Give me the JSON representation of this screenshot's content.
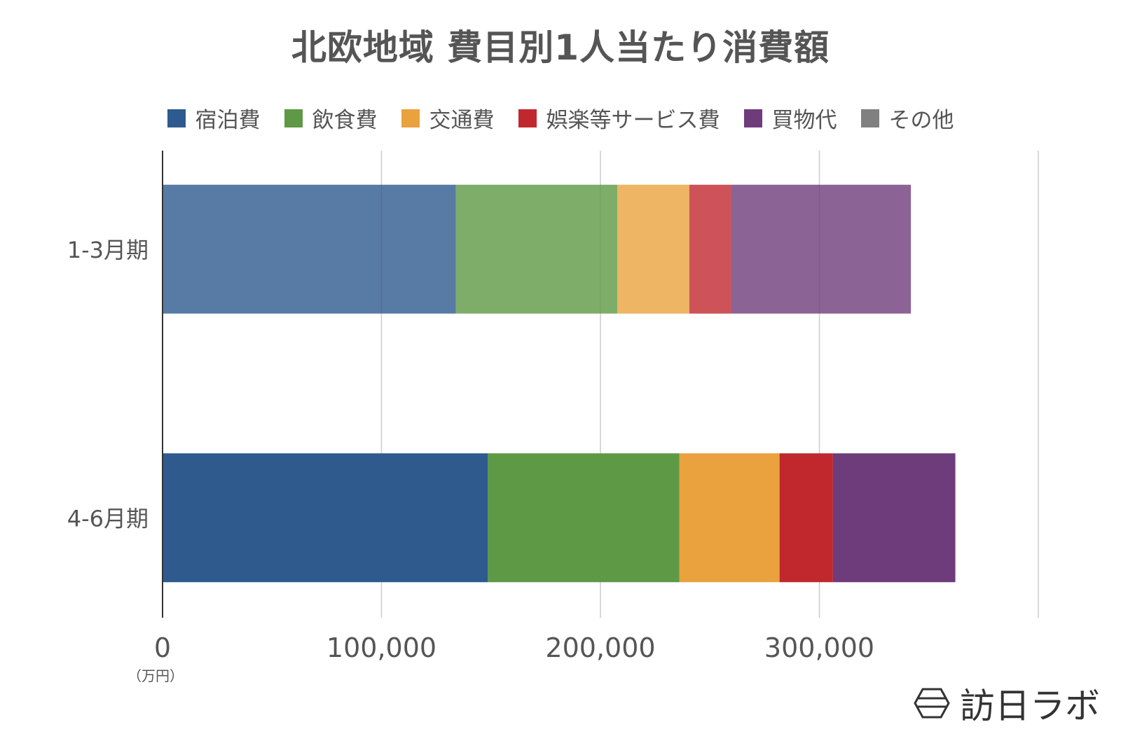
{
  "chart_data": {
    "type": "bar",
    "orientation": "horizontal",
    "stacked": true,
    "title": "北欧地域 費目別1人当たり消費額",
    "categories": [
      "1-3月期",
      "4-6月期"
    ],
    "series": [
      {
        "name": "宿泊費",
        "color": "#2e5a8e",
        "values": [
          134000,
          148600
        ]
      },
      {
        "name": "飲食費",
        "color": "#5e9945",
        "values": [
          73700,
          87400
        ]
      },
      {
        "name": "交通費",
        "color": "#e9a23d",
        "values": [
          32900,
          45800
        ]
      },
      {
        "name": "娯楽等サービス費",
        "color": "#c0282e",
        "values": [
          19100,
          24400
        ]
      },
      {
        "name": "買物代",
        "color": "#6e3c7a",
        "values": [
          82100,
          55900
        ]
      },
      {
        "name": "その他",
        "color": "#808080",
        "values": [
          0,
          0
        ]
      }
    ],
    "first_category_opacity": 0.8,
    "xlim": [
      0,
      400000
    ],
    "x_ticks": [
      0,
      100000,
      200000,
      300000
    ],
    "x_tick_labels": [
      "0",
      "100,000",
      "200,000",
      "300,000"
    ],
    "x_unit_label": "（万円）",
    "grid": true,
    "legend_position": "top"
  },
  "logo": {
    "text": "訪日ラボ",
    "icon": "hexagon-logo-icon"
  }
}
